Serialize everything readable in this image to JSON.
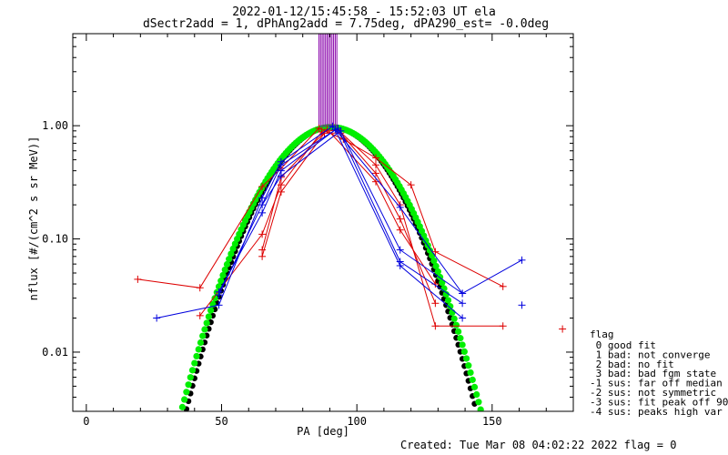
{
  "chart_data": {
    "type": "line",
    "title": "2022-01-12/15:45:58 - 15:52:03 UT ela",
    "subtitle": "dSectr2add = 1, dPhAng2add = 7.75deg, dPA290_est=  -0.0deg",
    "xlabel": "PA [deg]",
    "ylabel": "nflux [#/(cm^2 s sr MeV)]",
    "xlim": [
      -5,
      180
    ],
    "ylim": [
      0.003,
      6.5
    ],
    "yscale": "log",
    "x_ticks": [
      0,
      50,
      100,
      150
    ],
    "x_tick_labels": [
      "0",
      "50",
      "100",
      "150"
    ],
    "y_ticks": [
      0.01,
      0.1,
      1.0
    ],
    "y_tick_labels": [
      "0.01",
      "0.10",
      "1.00"
    ],
    "grid": false,
    "fit_curves": [
      {
        "color": "#000000",
        "x0": 90.5,
        "sigma": 15.8,
        "amplitude": 0.97
      },
      {
        "color": "#00ee00",
        "x0": 90.5,
        "sigma": 16.3,
        "amplitude": 0.97
      }
    ],
    "series": [
      {
        "color": "#dd0000",
        "points": [
          [
            19,
            0.044
          ],
          [
            42,
            0.037
          ],
          [
            65,
            0.29
          ],
          [
            72,
            0.42
          ],
          [
            86,
            0.95
          ],
          [
            95,
            0.76
          ],
          [
            107,
            0.52
          ],
          [
            120,
            0.3
          ],
          [
            129,
            0.077
          ],
          [
            154,
            0.038
          ]
        ]
      },
      {
        "color": "#dd0000",
        "points": [
          [
            42,
            0.021
          ],
          [
            65,
            0.11
          ],
          [
            72,
            0.3
          ],
          [
            87,
            0.88
          ],
          [
            93,
            0.92
          ],
          [
            107,
            0.45
          ],
          [
            116,
            0.2
          ],
          [
            129,
            0.017
          ],
          [
            154,
            0.017
          ]
        ]
      },
      {
        "color": "#dd0000",
        "points": [
          [
            65,
            0.07
          ],
          [
            72,
            0.26
          ],
          [
            88,
            0.86
          ],
          [
            94,
            0.86
          ],
          [
            107,
            0.38
          ],
          [
            116,
            0.15
          ],
          [
            129,
            0.027
          ]
        ]
      },
      {
        "color": "#dd0000",
        "points": [
          [
            65,
            0.08
          ],
          [
            72,
            0.35
          ],
          [
            89,
            0.93
          ],
          [
            107,
            0.32
          ],
          [
            116,
            0.12
          ],
          [
            129,
            0.04
          ]
        ]
      },
      {
        "color": "#dd0000",
        "points": [
          [
            176,
            0.016
          ]
        ]
      },
      {
        "color": "#0000dd",
        "points": [
          [
            26,
            0.02
          ],
          [
            49,
            0.026
          ],
          [
            65,
            0.23
          ],
          [
            72,
            0.48
          ],
          [
            91,
            0.99
          ],
          [
            116,
            0.19
          ],
          [
            139,
            0.033
          ],
          [
            161,
            0.065
          ]
        ]
      },
      {
        "color": "#0000dd",
        "points": [
          [
            49,
            0.034
          ],
          [
            65,
            0.17
          ],
          [
            72,
            0.4
          ],
          [
            92,
            0.92
          ],
          [
            116,
            0.058
          ],
          [
            139,
            0.02
          ]
        ]
      },
      {
        "color": "#0000dd",
        "points": [
          [
            49,
            0.032
          ],
          [
            72,
            0.45
          ],
          [
            93,
            0.95
          ],
          [
            116,
            0.063
          ],
          [
            139,
            0.027
          ]
        ]
      },
      {
        "color": "#0000dd",
        "points": [
          [
            65,
            0.2
          ],
          [
            72,
            0.36
          ],
          [
            94,
            0.9
          ],
          [
            116,
            0.08
          ],
          [
            139,
            0.033
          ]
        ]
      },
      {
        "color": "#0000dd",
        "points": [
          [
            161,
            0.026
          ]
        ]
      }
    ],
    "flag_lines": {
      "color": "#8800aa",
      "x": [
        86,
        86.6,
        87.2,
        87.8,
        88.4,
        89,
        89.6,
        90.2,
        90.8,
        91.4,
        92,
        92.6
      ],
      "y_from": 0.97
    },
    "legend_title": "flag",
    "legend_entries": [
      " 0 good fit",
      " 1 bad: not converge",
      " 2 bad: no fit",
      " 3 bad: bad fgm state",
      "-1 sus: far off median",
      "-2 sus: not symmetric",
      "-3 sus: fit peak off 90",
      "-4 sus: peaks high var"
    ],
    "legend_position": "right",
    "footer": "Created: Tue Mar 08 04:02:22 2022   flag = 0"
  }
}
